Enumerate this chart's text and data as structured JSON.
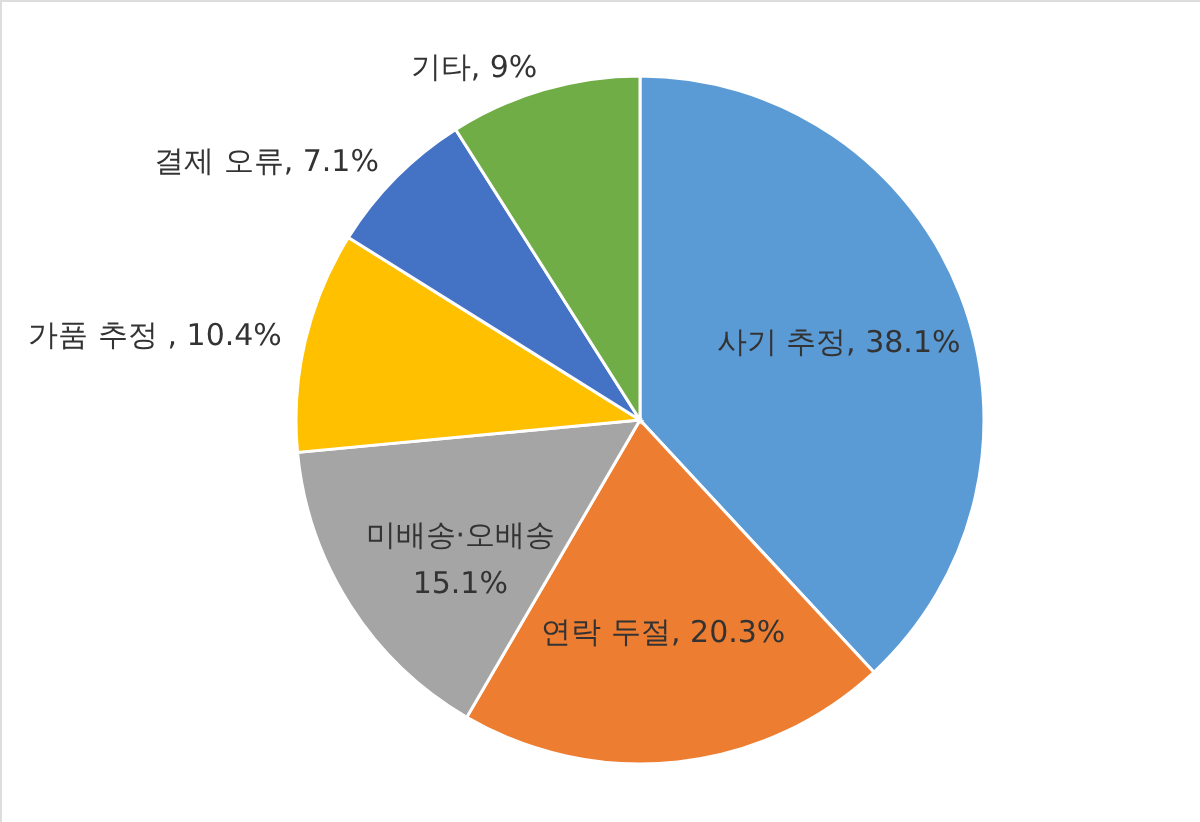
{
  "chart_data": {
    "type": "pie",
    "categories": [
      "사기 추정",
      "연락 두절",
      "미배송·오배송",
      "가품 추정 ",
      "결제 오류",
      "기타"
    ],
    "values": [
      38.1,
      20.3,
      15.1,
      10.4,
      7.1,
      9
    ],
    "colors": [
      "#5b9bd5",
      "#ed7d31",
      "#a5a5a5",
      "#ffc000",
      "#4472c4",
      "#70ad47"
    ],
    "value_labels": [
      "38.1%",
      "20.3%",
      "15.1%",
      "10.4%",
      "7.1%",
      "9%"
    ],
    "legend": false
  }
}
